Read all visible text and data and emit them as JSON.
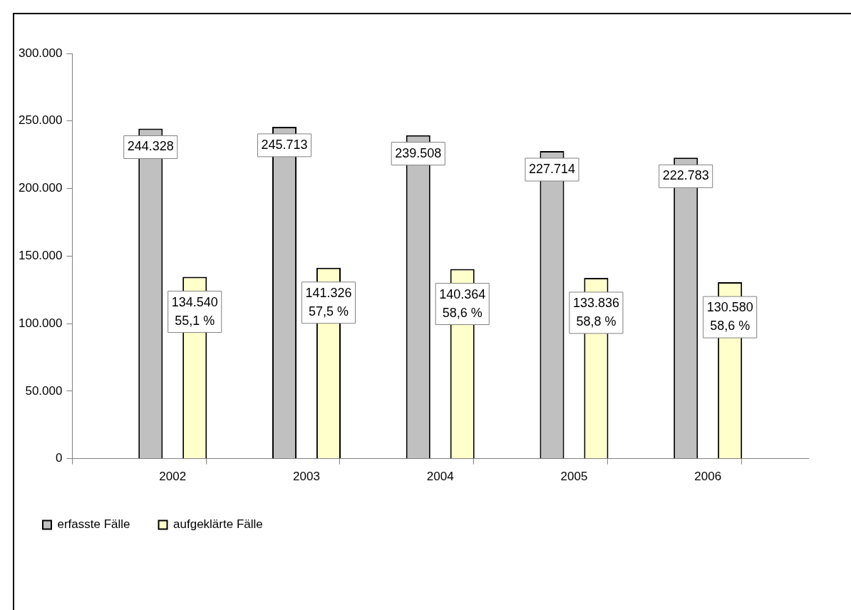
{
  "chart_data": {
    "type": "bar",
    "categories": [
      "2002",
      "2003",
      "2004",
      "2005",
      "2006"
    ],
    "series": [
      {
        "name": "erfasste Fälle",
        "color": "#c0c0c0",
        "values": [
          244328,
          245713,
          239508,
          227714,
          222783
        ],
        "value_labels": [
          "244.328",
          "245.713",
          "239.508",
          "227.714",
          "222.783"
        ]
      },
      {
        "name": "aufgeklärte Fälle",
        "color": "#ffffcc",
        "values": [
          134540,
          141326,
          140364,
          133836,
          130580
        ],
        "value_labels": [
          "134.540\n55,1 %",
          "141.326\n57,5 %",
          "140.364\n58,6 %",
          "133.836\n58,8 %",
          "130.580\n58,6 %"
        ]
      }
    ],
    "ylim": [
      0,
      300000
    ],
    "yticks": [
      {
        "value": 0,
        "label": "0"
      },
      {
        "value": 50000,
        "label": "50.000"
      },
      {
        "value": 100000,
        "label": "100.000"
      },
      {
        "value": 150000,
        "label": "150.000"
      },
      {
        "value": 200000,
        "label": "200.000"
      },
      {
        "value": 250000,
        "label": "250.000"
      },
      {
        "value": 300000,
        "label": "300.000"
      }
    ],
    "grid": false,
    "legend": "bottom left"
  }
}
